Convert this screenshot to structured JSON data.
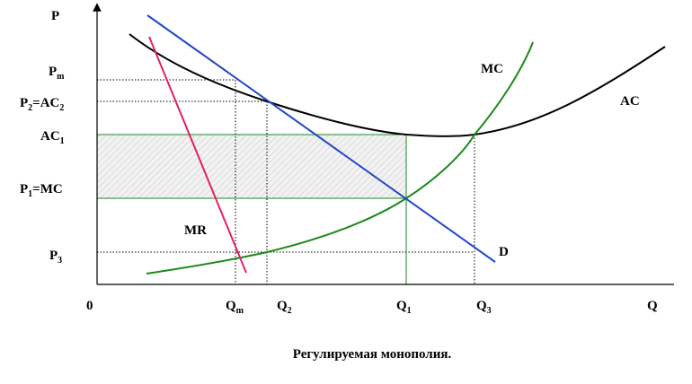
{
  "diagram": {
    "caption": "Регулируемая монополия.",
    "axes": {
      "y_label": "P",
      "x_label": "Q",
      "origin_label": "0"
    },
    "price_labels": [
      {
        "main": "P",
        "sub": "m",
        "rest": ""
      },
      {
        "main": "P",
        "sub": "2",
        "rest": "=AC",
        "sub2": "2"
      },
      {
        "main": "AC",
        "sub": "1",
        "rest": ""
      },
      {
        "main": "P",
        "sub": "1",
        "rest": "=MC"
      },
      {
        "main": "P",
        "sub": "3",
        "rest": ""
      }
    ],
    "quantity_labels": [
      {
        "main": "Q",
        "sub": "m"
      },
      {
        "main": "Q",
        "sub": "2"
      },
      {
        "main": "Q",
        "sub": "1"
      },
      {
        "main": "Q",
        "sub": "3"
      }
    ],
    "curve_labels": {
      "mc": "MC",
      "ac": "AC",
      "mr": "MR",
      "d": "D"
    },
    "colors": {
      "ac": "#000000",
      "mc": "#1a8a1a",
      "demand": "#1f47c8",
      "mr": "#e0206a",
      "guides": "#000000",
      "shade_border": "#1a8a1a"
    }
  }
}
